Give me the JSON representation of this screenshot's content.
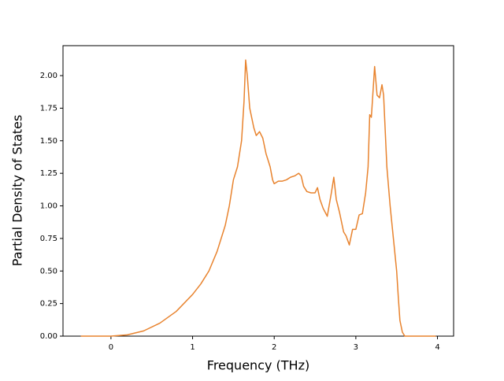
{
  "chart_data": {
    "type": "line",
    "xlabel": "Frequency (THz)",
    "ylabel": "Partial Density of States",
    "color": "#e8832e",
    "x": [
      -0.37,
      0,
      0.2,
      0.4,
      0.6,
      0.8,
      1.0,
      1.1,
      1.2,
      1.3,
      1.4,
      1.45,
      1.5,
      1.55,
      1.6,
      1.63,
      1.65,
      1.67,
      1.7,
      1.75,
      1.78,
      1.82,
      1.86,
      1.9,
      1.95,
      1.98,
      2.0,
      2.05,
      2.1,
      2.15,
      2.2,
      2.25,
      2.3,
      2.33,
      2.36,
      2.4,
      2.45,
      2.5,
      2.53,
      2.56,
      2.6,
      2.65,
      2.7,
      2.73,
      2.76,
      2.8,
      2.85,
      2.88,
      2.92,
      2.96,
      3.0,
      3.04,
      3.08,
      3.12,
      3.15,
      3.17,
      3.19,
      3.23,
      3.26,
      3.29,
      3.32,
      3.34,
      3.38,
      3.42,
      3.46,
      3.5,
      3.52,
      3.54,
      3.57,
      3.6,
      3.7,
      3.98
    ],
    "values": [
      0,
      0,
      0.01,
      0.04,
      0.1,
      0.19,
      0.32,
      0.4,
      0.5,
      0.65,
      0.85,
      1.0,
      1.2,
      1.3,
      1.5,
      1.8,
      2.12,
      2.0,
      1.75,
      1.6,
      1.54,
      1.57,
      1.52,
      1.4,
      1.3,
      1.2,
      1.17,
      1.19,
      1.19,
      1.2,
      1.22,
      1.23,
      1.25,
      1.23,
      1.15,
      1.11,
      1.1,
      1.1,
      1.14,
      1.05,
      0.98,
      0.92,
      1.1,
      1.22,
      1.05,
      0.95,
      0.8,
      0.77,
      0.7,
      0.82,
      0.82,
      0.93,
      0.94,
      1.1,
      1.3,
      1.7,
      1.68,
      2.07,
      1.85,
      1.83,
      1.93,
      1.85,
      1.3,
      1.0,
      0.75,
      0.5,
      0.3,
      0.12,
      0.03,
      0,
      0,
      0
    ],
    "xlim": [
      -0.5875,
      4.1975
    ],
    "xticks": [
      0,
      1,
      2,
      3,
      4
    ],
    "ylim": [
      0,
      2.23
    ],
    "yticks": [
      {
        "value": 0,
        "label": "0.00"
      },
      {
        "value": 0.25,
        "label": "0.25"
      },
      {
        "value": 0.5,
        "label": "0.50"
      },
      {
        "value": 0.75,
        "label": "0.75"
      },
      {
        "value": 1.0,
        "label": "1.00"
      },
      {
        "value": 1.25,
        "label": "1.25"
      },
      {
        "value": 1.5,
        "label": "1.50"
      },
      {
        "value": 1.75,
        "label": "1.75"
      },
      {
        "value": 2.0,
        "label": "2.00"
      }
    ]
  }
}
